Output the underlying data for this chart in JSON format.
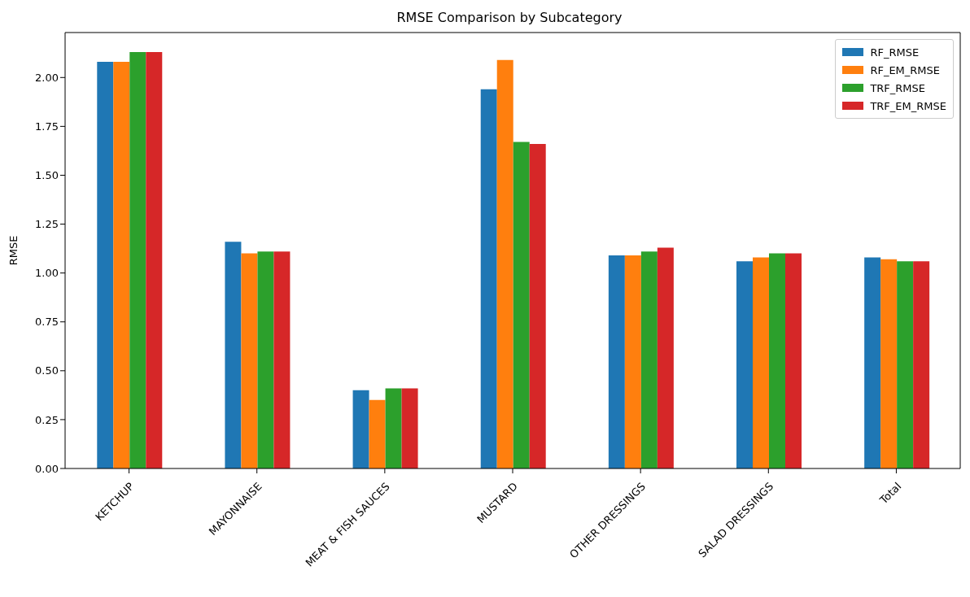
{
  "chart_data": {
    "type": "bar",
    "title": "RMSE Comparison by Subcategory",
    "ylabel": "RMSE",
    "categories": [
      "KETCHUP",
      "MAYONNAISE",
      "MEAT & FISH SAUCES",
      "MUSTARD",
      "OTHER DRESSINGS",
      "SALAD DRESSINGS",
      "Total"
    ],
    "series": [
      {
        "name": "RF_RMSE",
        "color": "#1f77b4",
        "values": [
          2.08,
          1.16,
          0.4,
          1.94,
          1.09,
          1.06,
          1.08
        ]
      },
      {
        "name": "RF_EM_RMSE",
        "color": "#ff7f0e",
        "values": [
          2.08,
          1.1,
          0.35,
          2.09,
          1.09,
          1.08,
          1.07
        ]
      },
      {
        "name": "TRF_RMSE",
        "color": "#2ca02c",
        "values": [
          2.13,
          1.11,
          0.41,
          1.67,
          1.11,
          1.1,
          1.06
        ]
      },
      {
        "name": "TRF_EM_RMSE",
        "color": "#d62728",
        "values": [
          2.13,
          1.11,
          0.41,
          1.66,
          1.13,
          1.1,
          1.06
        ]
      }
    ],
    "ylim": [
      0,
      2.23
    ],
    "yticks": [
      {
        "value": 0,
        "label": "0.00"
      },
      {
        "value": 0.25,
        "label": "0.25"
      },
      {
        "value": 0.5,
        "label": "0.50"
      },
      {
        "value": 0.75,
        "label": "0.75"
      },
      {
        "value": 1,
        "label": "1.00"
      },
      {
        "value": 1.25,
        "label": "1.25"
      },
      {
        "value": 1.5,
        "label": "1.50"
      },
      {
        "value": 1.75,
        "label": "1.75"
      },
      {
        "value": 2,
        "label": "2.00"
      }
    ],
    "grid": false,
    "legend": "top right"
  }
}
